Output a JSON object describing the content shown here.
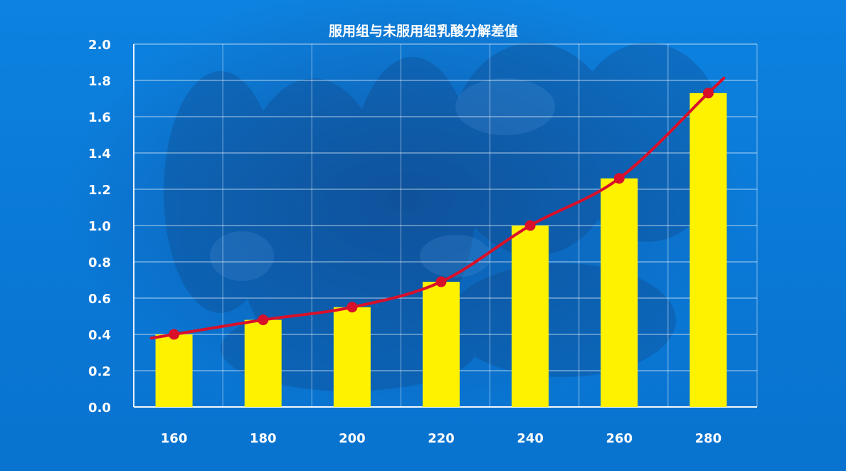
{
  "chart_data": {
    "type": "bar",
    "title": "服用组与未服用组乳酸分解差值",
    "xlabel": "",
    "ylabel": "",
    "categories": [
      "160",
      "180",
      "200",
      "220",
      "240",
      "260",
      "280"
    ],
    "series": [
      {
        "type": "bar",
        "values": [
          0.4,
          0.48,
          0.55,
          0.69,
          1.0,
          1.26,
          1.73
        ],
        "color": "#fff200"
      },
      {
        "type": "line",
        "values": [
          0.4,
          0.48,
          0.55,
          0.69,
          1.0,
          1.26,
          1.73
        ],
        "color": "#d9102a",
        "smooth": true,
        "markers": true
      }
    ],
    "ylim": [
      0.0,
      2.0
    ],
    "yticks": [
      "0.0",
      "0.2",
      "0.4",
      "0.6",
      "0.8",
      "1.0",
      "1.2",
      "1.4",
      "1.6",
      "1.8",
      "2.0"
    ],
    "grid": true,
    "background_color": "#0a78d6",
    "text_color": "#ffffff"
  }
}
